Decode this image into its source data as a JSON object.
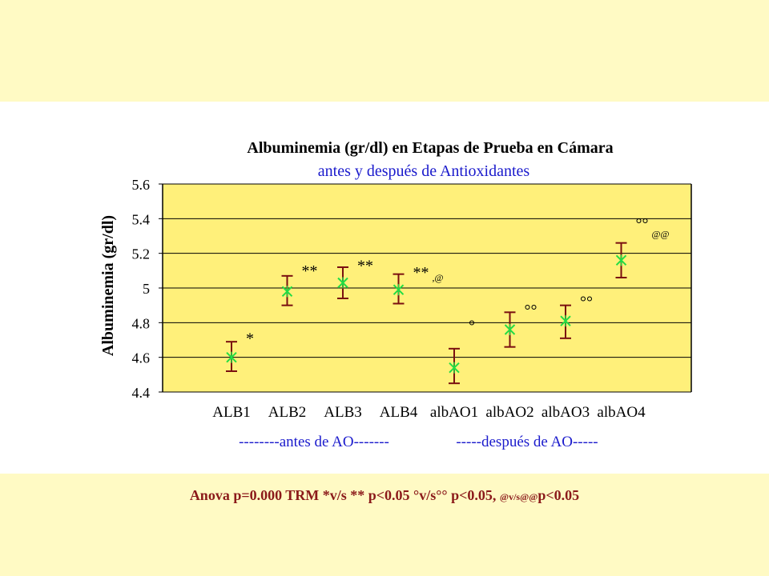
{
  "chart_data": {
    "type": "scatter",
    "title": "Albuminemia (gr/dl) en Etapas de Prueba en Cámara",
    "subtitle": "antes y después de Antioxidantes",
    "ylabel": "Albuminemia (gr/dl)",
    "ylim": [
      4.4,
      5.6
    ],
    "yticks": [
      4.4,
      4.6,
      4.8,
      5,
      5.2,
      5.4,
      5.6
    ],
    "ytick_labels": [
      "4.4",
      "4.6",
      "4.8",
      "5",
      "5.2",
      "5.4",
      "5.6"
    ],
    "grid": true,
    "categories": [
      "ALB1",
      "ALB2",
      "ALB3",
      "ALB4",
      "albAO1",
      "albAO2",
      "albAO3",
      "albAO4"
    ],
    "values": [
      4.6,
      4.98,
      5.03,
      4.99,
      4.54,
      4.76,
      4.81,
      5.16
    ],
    "error_low": [
      4.52,
      4.9,
      4.94,
      4.91,
      4.45,
      4.66,
      4.71,
      5.06
    ],
    "error_high": [
      4.69,
      5.07,
      5.12,
      5.08,
      4.65,
      4.86,
      4.9,
      5.26
    ],
    "annotations": [
      {
        "category": "ALB1",
        "text": "*",
        "y": 4.68
      },
      {
        "category": "ALB2",
        "text": "**",
        "y": 5.07
      },
      {
        "category": "ALB3",
        "text": "**",
        "y": 5.1
      },
      {
        "category": "ALB4",
        "text": "**",
        "small": ",@",
        "y": 5.06
      },
      {
        "category": "albAO1",
        "text": "°",
        "y": 4.75
      },
      {
        "category": "albAO2",
        "text": "°°",
        "y": 4.84
      },
      {
        "category": "albAO3",
        "text": "°°",
        "y": 4.89
      },
      {
        "category": "albAO4",
        "text": "°°",
        "small": "@@",
        "y": 5.34
      }
    ],
    "group_labels": [
      "--------antes de AO-------",
      "-----después de AO-----"
    ],
    "marker_color": "#22DD44",
    "error_color": "#7A1010",
    "plot_background": "#FFF07A"
  },
  "footer": {
    "main": "Anova p=0.000 TRM *v/s ** p<0.05 °v/s°° p<0.05, ",
    "small": "@v/s@@",
    "end": "p<0.05"
  }
}
